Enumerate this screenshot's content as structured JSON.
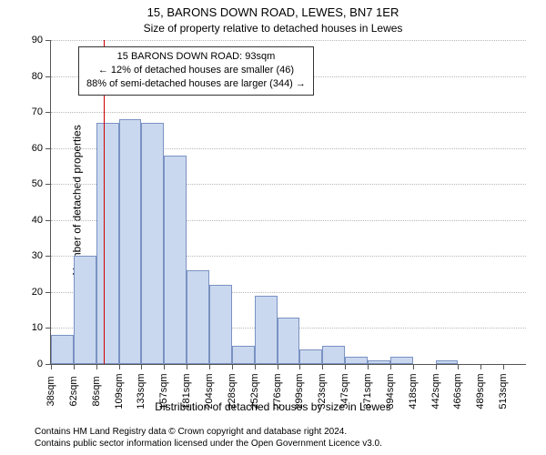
{
  "title_main": "15, BARONS DOWN ROAD, LEWES, BN7 1ER",
  "title_sub": "Size of property relative to detached houses in Lewes",
  "y_axis_label": "Number of detached properties",
  "x_axis_label": "Distribution of detached houses by size in Lewes",
  "attribution_line1": "Contains HM Land Registry data © Crown copyright and database right 2024.",
  "attribution_line2": "Contains public sector information licensed under the Open Government Licence v3.0.",
  "annotation": {
    "line1": "15 BARONS DOWN ROAD: 93sqm",
    "line2": "← 12% of detached houses are smaller (46)",
    "line3": "88% of semi-detached houses are larger (344) →"
  },
  "chart": {
    "type": "histogram",
    "y_min": 0,
    "y_max": 90,
    "y_tick_step": 10,
    "background_color": "#ffffff",
    "grid_color": "#b8b8b8",
    "axis_color": "#555555",
    "bar_fill": "#cad8ef",
    "bar_stroke": "#7a92c3",
    "bar_stroke_width": 1,
    "refline_color": "#cc0000",
    "refline_at_category_index": 2.34,
    "annotation_border": "#333333",
    "annotation_bg": "#ffffff",
    "x_labels": [
      "38sqm",
      "62sqm",
      "86sqm",
      "109sqm",
      "133sqm",
      "157sqm",
      "181sqm",
      "204sqm",
      "228sqm",
      "252sqm",
      "276sqm",
      "299sqm",
      "323sqm",
      "347sqm",
      "371sqm",
      "394sqm",
      "418sqm",
      "442sqm",
      "466sqm",
      "489sqm",
      "513sqm"
    ],
    "values": [
      8,
      30,
      67,
      68,
      67,
      58,
      26,
      22,
      5,
      19,
      13,
      4,
      5,
      2,
      1,
      2,
      0,
      1,
      0,
      0,
      0
    ],
    "title_fontsize": 13,
    "subtitle_fontsize": 12,
    "axis_label_fontsize": 12,
    "tick_fontsize": 11,
    "annotation_fontsize": 11,
    "attribution_fontsize": 10
  }
}
